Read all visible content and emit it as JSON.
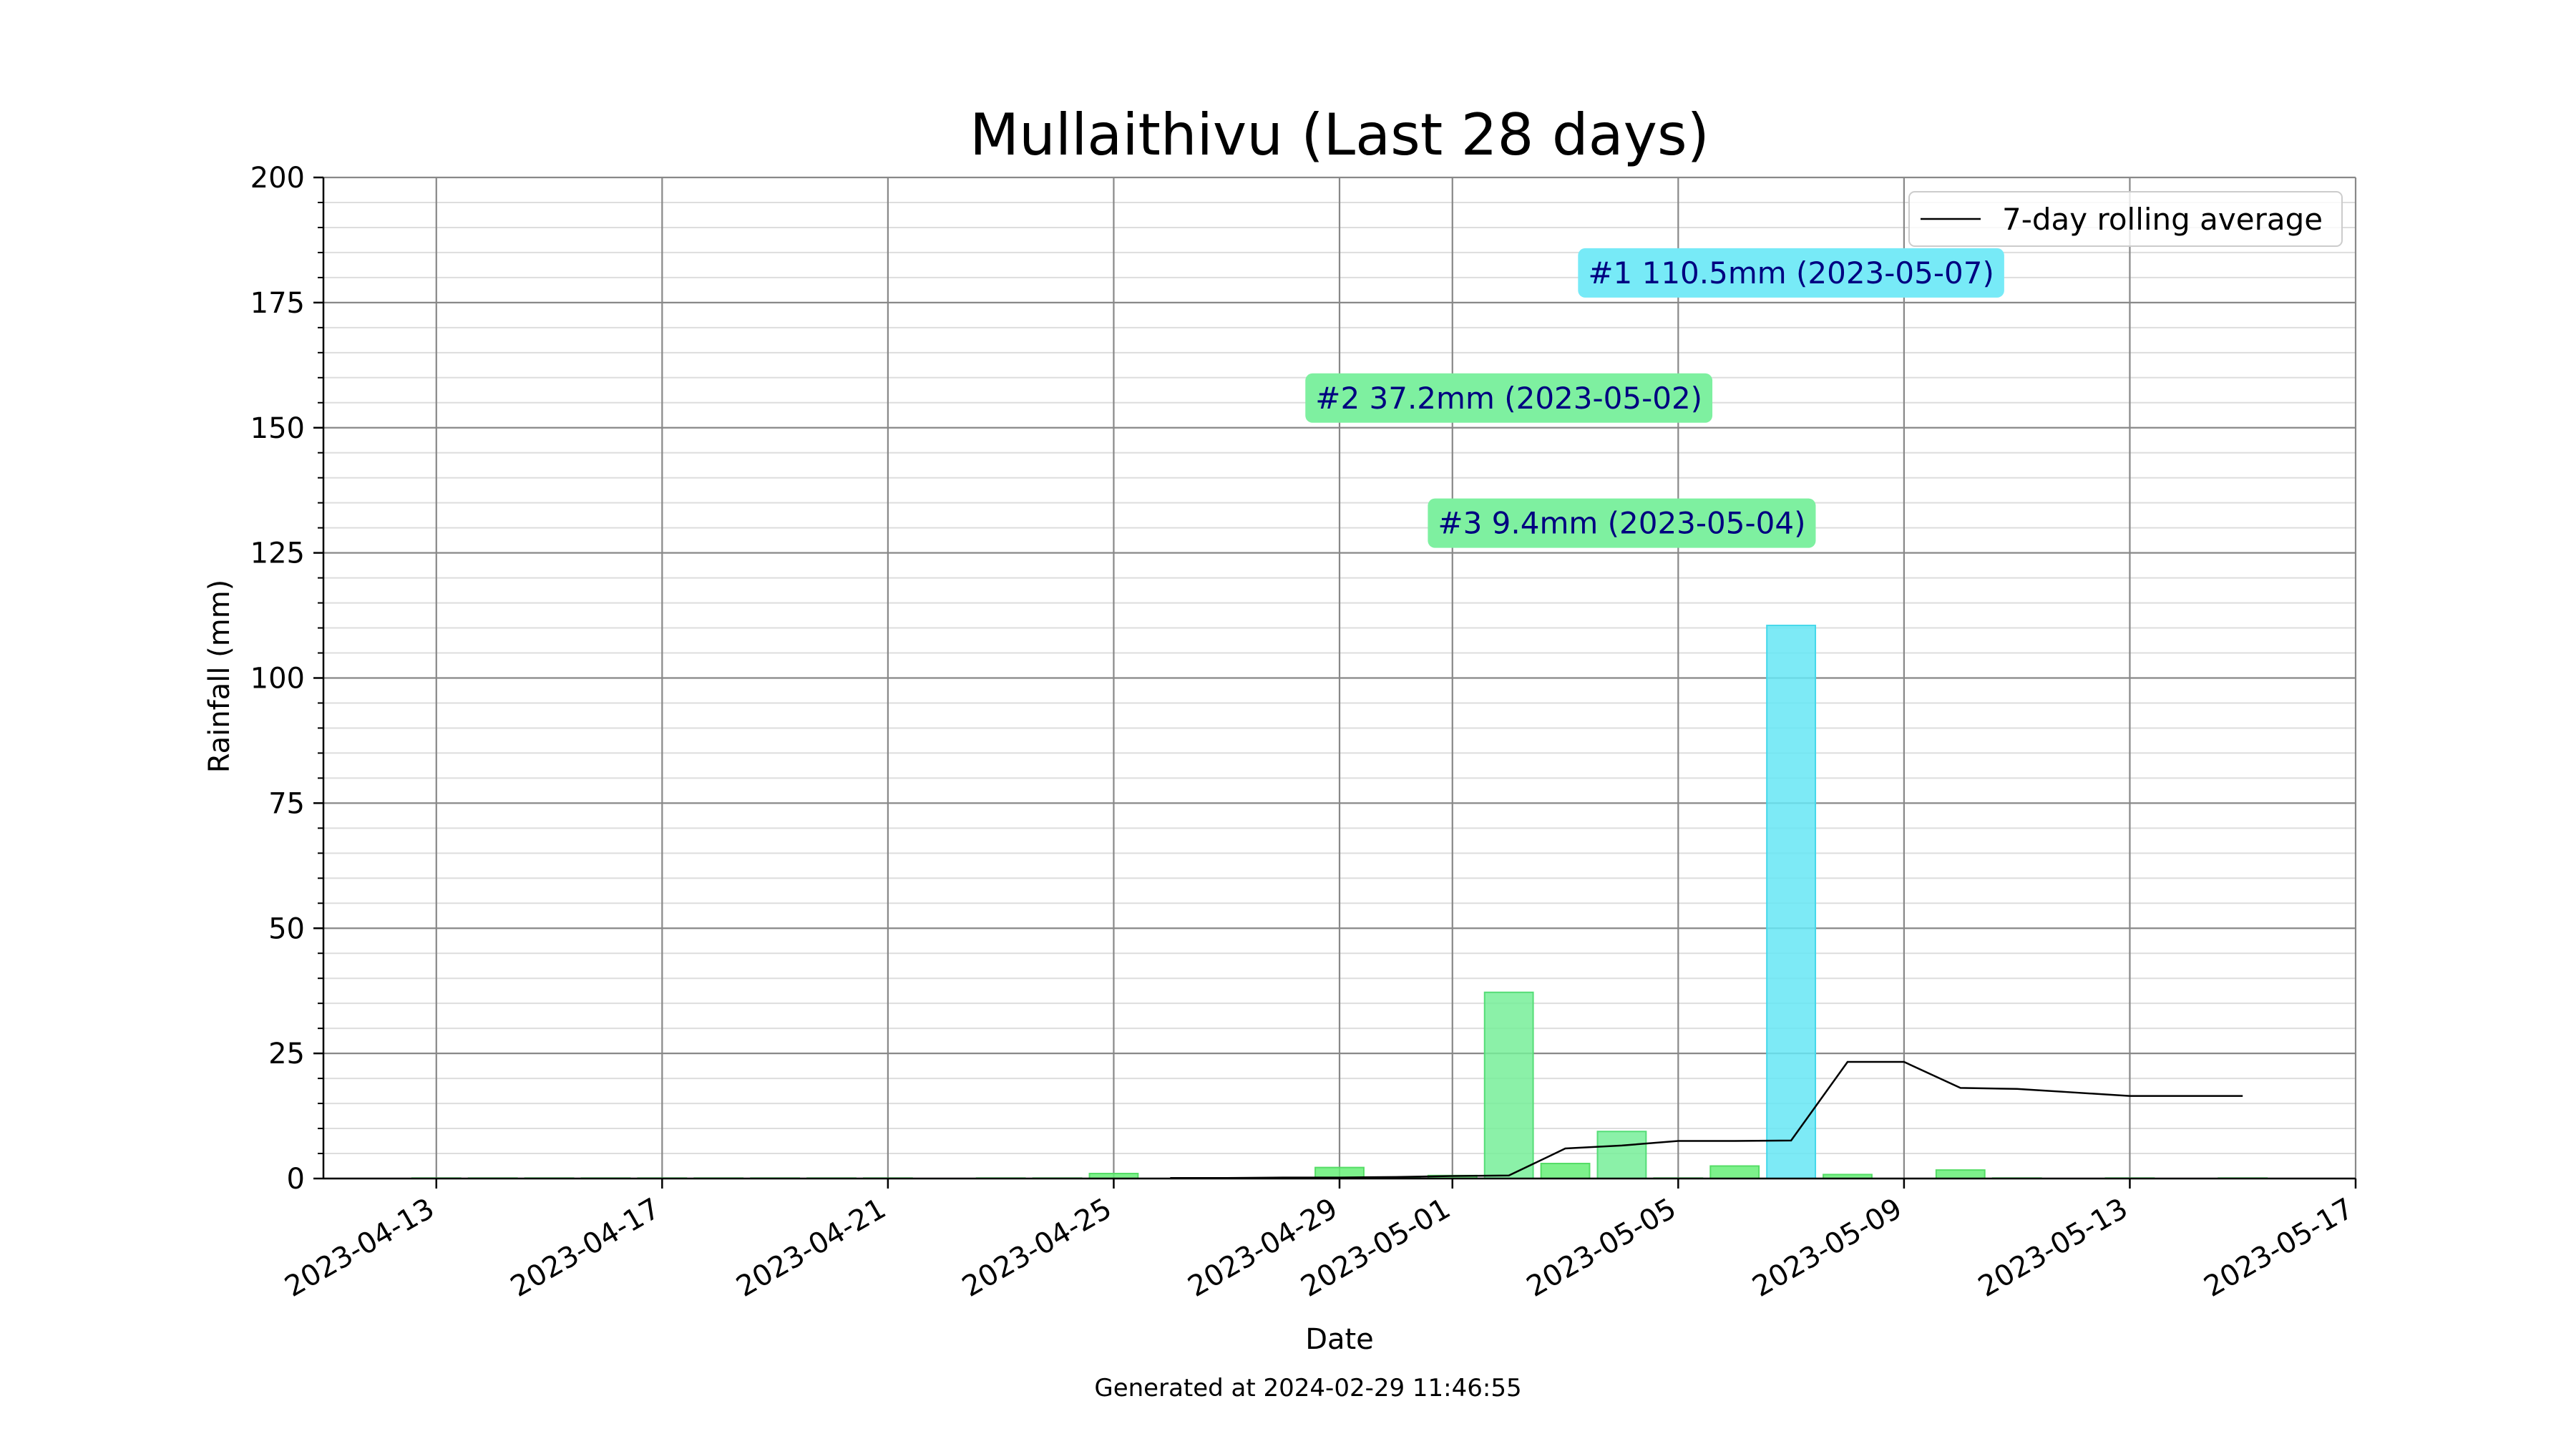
{
  "chart_data": {
    "type": "bar",
    "title": "Mullaithivu (Last 28 days)",
    "xlabel": "Date",
    "ylabel": "Rainfall (mm)",
    "footer": "Generated at 2024-02-29 11:46:55",
    "ylim": [
      0,
      200
    ],
    "yticks": [
      0,
      25,
      50,
      75,
      100,
      125,
      150,
      175,
      200
    ],
    "xlim": [
      "2023-04-11",
      "2023-05-17"
    ],
    "xticks": [
      "2023-04-13",
      "2023-04-17",
      "2023-04-21",
      "2023-04-25",
      "2023-04-29",
      "2023-05-01",
      "2023-05-05",
      "2023-05-09",
      "2023-05-13",
      "2023-05-17"
    ],
    "grid": {
      "major": true,
      "minor_y": true
    },
    "legend": {
      "position": "top-right",
      "entries": [
        "7-day rolling average"
      ]
    },
    "colors": {
      "bar": "#66ee77",
      "bar_top3": "#77ee99",
      "bar_max": "#66e6f5",
      "line": "#000000",
      "grid": "#888888",
      "minor_grid": "#dddddd"
    },
    "bars": [
      {
        "date": "2023-04-13",
        "value": 0.1
      },
      {
        "date": "2023-04-14",
        "value": 0.1
      },
      {
        "date": "2023-04-15",
        "value": 0.1
      },
      {
        "date": "2023-04-16",
        "value": 0.1
      },
      {
        "date": "2023-04-17",
        "value": 0.1
      },
      {
        "date": "2023-04-18",
        "value": 0.1
      },
      {
        "date": "2023-04-19",
        "value": 0.1
      },
      {
        "date": "2023-04-20",
        "value": 0.1
      },
      {
        "date": "2023-04-21",
        "value": 0.1
      },
      {
        "date": "2023-04-22",
        "value": 0.0
      },
      {
        "date": "2023-04-23",
        "value": 0.1
      },
      {
        "date": "2023-04-24",
        "value": 0.1
      },
      {
        "date": "2023-04-25",
        "value": 1.0
      },
      {
        "date": "2023-04-26",
        "value": 0.0
      },
      {
        "date": "2023-04-27",
        "value": 0.0
      },
      {
        "date": "2023-04-28",
        "value": 0.0
      },
      {
        "date": "2023-04-29",
        "value": 2.2
      },
      {
        "date": "2023-04-30",
        "value": 0.2
      },
      {
        "date": "2023-05-01",
        "value": 0.6
      },
      {
        "date": "2023-05-02",
        "value": 37.2,
        "highlight": "top3"
      },
      {
        "date": "2023-05-03",
        "value": 3.0
      },
      {
        "date": "2023-05-04",
        "value": 9.4,
        "highlight": "top3"
      },
      {
        "date": "2023-05-05",
        "value": 0.1
      },
      {
        "date": "2023-05-06",
        "value": 2.5
      },
      {
        "date": "2023-05-07",
        "value": 110.5,
        "highlight": "max"
      },
      {
        "date": "2023-05-08",
        "value": 0.8
      },
      {
        "date": "2023-05-09",
        "value": 0.0
      },
      {
        "date": "2023-05-10",
        "value": 1.7
      },
      {
        "date": "2023-05-11",
        "value": 0.1
      },
      {
        "date": "2023-05-12",
        "value": 0.0
      },
      {
        "date": "2023-05-13",
        "value": 0.1
      },
      {
        "date": "2023-05-14",
        "value": 0.0
      },
      {
        "date": "2023-05-15",
        "value": 0.1
      }
    ],
    "series": [
      {
        "name": "7-day rolling average",
        "points": [
          {
            "date": "2023-04-26",
            "value": 0.1
          },
          {
            "date": "2023-04-27",
            "value": 0.1
          },
          {
            "date": "2023-04-28",
            "value": 0.2
          },
          {
            "date": "2023-04-29",
            "value": 0.2
          },
          {
            "date": "2023-04-30",
            "value": 0.3
          },
          {
            "date": "2023-05-01",
            "value": 0.5
          },
          {
            "date": "2023-05-02",
            "value": 0.6
          },
          {
            "date": "2023-05-03",
            "value": 6.0
          },
          {
            "date": "2023-05-04",
            "value": 6.6
          },
          {
            "date": "2023-05-05",
            "value": 7.5
          },
          {
            "date": "2023-05-06",
            "value": 7.5
          },
          {
            "date": "2023-05-07",
            "value": 7.6
          },
          {
            "date": "2023-05-08",
            "value": 23.3
          },
          {
            "date": "2023-05-09",
            "value": 23.3
          },
          {
            "date": "2023-05-10",
            "value": 18.1
          },
          {
            "date": "2023-05-11",
            "value": 17.9
          },
          {
            "date": "2023-05-12",
            "value": 17.2
          },
          {
            "date": "2023-05-13",
            "value": 16.5
          },
          {
            "date": "2023-05-14",
            "value": 16.5
          },
          {
            "date": "2023-05-15",
            "value": 16.5
          }
        ]
      }
    ],
    "annotations": [
      {
        "text": "#1 110.5mm (2023-05-07)",
        "color": "#77eaf7",
        "anchor_date": "2023-05-07",
        "anchor_value": 181
      },
      {
        "text": "#2 37.2mm (2023-05-02)",
        "color": "#7ef0a0",
        "anchor_date": "2023-05-02",
        "anchor_value": 156
      },
      {
        "text": "#3 9.4mm (2023-05-04)",
        "color": "#7ef0a0",
        "anchor_date": "2023-05-04",
        "anchor_value": 131
      }
    ]
  }
}
